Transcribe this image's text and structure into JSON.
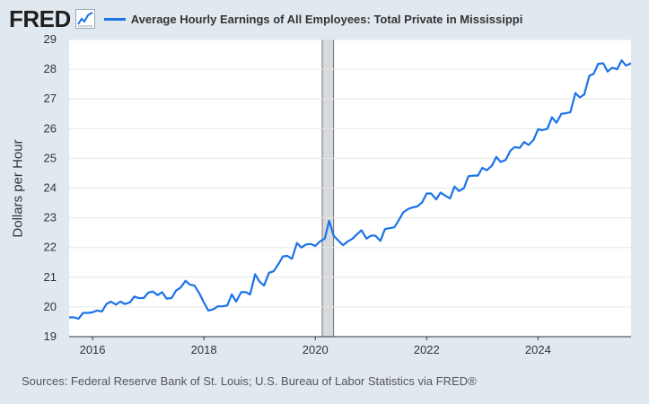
{
  "header": {
    "logo_text": "FRED",
    "title": "Average Hourly Earnings of All Employees: Total Private in Mississippi",
    "series_color": "#1a73e8"
  },
  "footer": {
    "source": "Sources: Federal Reserve Bank of St. Louis; U.S. Bureau of Labor Statistics via FRED®"
  },
  "chart_data": {
    "type": "line",
    "title": "Average Hourly Earnings of All Employees: Total Private in Mississippi",
    "xlabel": "",
    "ylabel": "Dollars per Hour",
    "xlim": [
      2015.58,
      2025.67
    ],
    "ylim": [
      19,
      29
    ],
    "xticks": [
      2016,
      2018,
      2020,
      2022,
      2024
    ],
    "xtick_labels": [
      "2016",
      "2018",
      "2020",
      "2022",
      "2024"
    ],
    "yticks": [
      19,
      20,
      21,
      22,
      23,
      24,
      25,
      26,
      27,
      28,
      29
    ],
    "ytick_labels": [
      "19",
      "20",
      "21",
      "22",
      "23",
      "24",
      "25",
      "26",
      "27",
      "28",
      "29"
    ],
    "grid": true,
    "recession": [
      2020.125,
      2020.33
    ],
    "series": [
      {
        "name": "Average Hourly Earnings of All Employees: Total Private in Mississippi",
        "color": "#1a73e8",
        "x": [
          2015.58,
          2015.67,
          2015.75,
          2015.83,
          2015.92,
          2016.0,
          2016.08,
          2016.17,
          2016.25,
          2016.33,
          2016.42,
          2016.5,
          2016.58,
          2016.67,
          2016.75,
          2016.83,
          2016.92,
          2017.0,
          2017.08,
          2017.17,
          2017.25,
          2017.33,
          2017.42,
          2017.5,
          2017.58,
          2017.67,
          2017.75,
          2017.83,
          2017.92,
          2018.0,
          2018.08,
          2018.17,
          2018.25,
          2018.33,
          2018.42,
          2018.5,
          2018.58,
          2018.67,
          2018.75,
          2018.83,
          2018.92,
          2019.0,
          2019.08,
          2019.17,
          2019.25,
          2019.33,
          2019.42,
          2019.5,
          2019.58,
          2019.67,
          2019.75,
          2019.83,
          2019.92,
          2020.0,
          2020.08,
          2020.17,
          2020.25,
          2020.33,
          2020.42,
          2020.5,
          2020.58,
          2020.67,
          2020.75,
          2020.83,
          2020.92,
          2021.0,
          2021.08,
          2021.17,
          2021.25,
          2021.33,
          2021.42,
          2021.5,
          2021.58,
          2021.67,
          2021.75,
          2021.83,
          2021.92,
          2022.0,
          2022.08,
          2022.17,
          2022.25,
          2022.33,
          2022.42,
          2022.5,
          2022.58,
          2022.67,
          2022.75,
          2022.83,
          2022.92,
          2023.0,
          2023.08,
          2023.17,
          2023.25,
          2023.33,
          2023.42,
          2023.5,
          2023.58,
          2023.67,
          2023.75,
          2023.83,
          2023.92,
          2024.0,
          2024.08,
          2024.17,
          2024.25,
          2024.33,
          2024.42,
          2024.5,
          2024.58,
          2024.67,
          2024.75,
          2024.83,
          2024.92,
          2025.0,
          2025.08,
          2025.17,
          2025.25,
          2025.33,
          2025.42,
          2025.5,
          2025.58,
          2025.67
        ],
        "values": [
          19.65,
          19.65,
          19.6,
          19.8,
          19.8,
          19.82,
          19.88,
          19.85,
          20.1,
          20.18,
          20.08,
          20.18,
          20.1,
          20.15,
          20.35,
          20.3,
          20.3,
          20.48,
          20.52,
          20.4,
          20.5,
          20.28,
          20.3,
          20.55,
          20.65,
          20.88,
          20.75,
          20.72,
          20.45,
          20.15,
          19.88,
          19.92,
          20.02,
          20.02,
          20.05,
          20.42,
          20.18,
          20.5,
          20.5,
          20.42,
          21.1,
          20.85,
          20.72,
          21.15,
          21.2,
          21.42,
          21.7,
          21.72,
          21.62,
          22.15,
          22.0,
          22.1,
          22.12,
          22.05,
          22.2,
          22.3,
          22.9,
          22.4,
          22.22,
          22.08,
          22.2,
          22.3,
          22.45,
          22.58,
          22.3,
          22.4,
          22.4,
          22.22,
          22.62,
          22.65,
          22.68,
          22.92,
          23.18,
          23.3,
          23.35,
          23.38,
          23.52,
          23.82,
          23.82,
          23.62,
          23.85,
          23.75,
          23.65,
          24.05,
          23.9,
          24.0,
          24.4,
          24.42,
          24.42,
          24.68,
          24.6,
          24.75,
          25.05,
          24.88,
          24.95,
          25.25,
          25.38,
          25.35,
          25.55,
          25.45,
          25.62,
          25.98,
          25.95,
          26.0,
          26.38,
          26.2,
          26.5,
          26.52,
          26.55,
          27.2,
          27.05,
          27.15,
          27.78,
          27.85,
          28.18,
          28.2,
          27.92,
          28.05,
          28.0,
          28.3,
          28.12,
          28.2
        ]
      }
    ]
  }
}
